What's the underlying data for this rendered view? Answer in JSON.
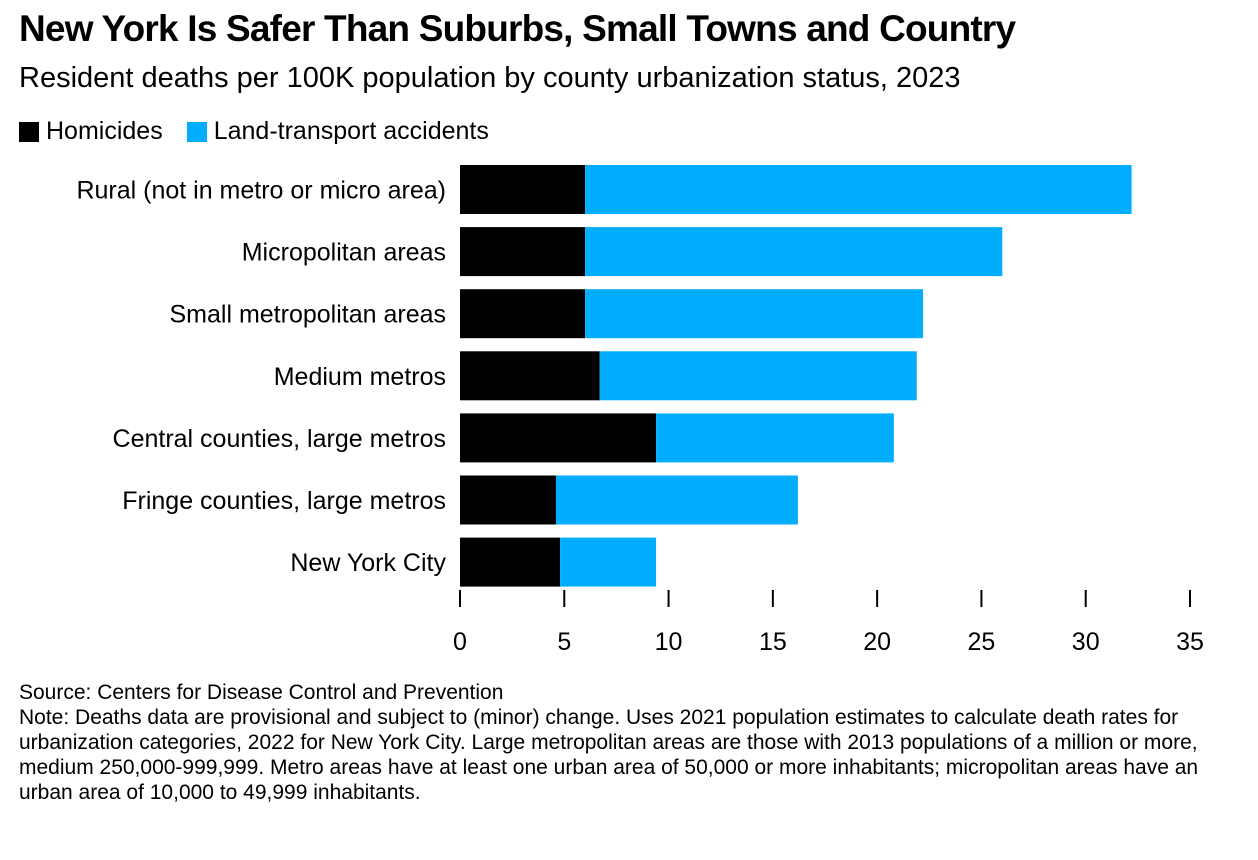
{
  "title": "New York Is Safer Than Suburbs, Small Towns and Country",
  "subtitle": "Resident deaths per 100K population by county urbanization status, 2023",
  "colors": {
    "homicides": "#000000",
    "transport": "#00adff",
    "axis": "#000000"
  },
  "chart_data": {
    "type": "bar",
    "orientation": "horizontal",
    "stacked": true,
    "categories": [
      "Rural (not in metro or micro area)",
      "Micropolitan areas",
      "Small metropolitan areas",
      "Medium metros",
      "Central counties, large metros",
      "Fringe counties, large metros",
      "New York City"
    ],
    "series": [
      {
        "name": "Homicides",
        "color": "#000000",
        "values": [
          6.0,
          6.0,
          6.0,
          6.7,
          9.4,
          4.6,
          4.8
        ]
      },
      {
        "name": "Land-transport accidents",
        "color": "#00adff",
        "values": [
          26.2,
          20.0,
          16.2,
          15.2,
          11.4,
          11.6,
          4.6
        ]
      }
    ],
    "xlim": [
      0,
      35
    ],
    "xticks": [
      "0",
      "5",
      "10",
      "15",
      "20",
      "25",
      "30",
      "35"
    ],
    "tick_values": [
      0,
      5,
      10,
      15,
      20,
      25,
      30,
      35
    ],
    "xlabel": "",
    "ylabel": "",
    "grid": false,
    "legend_position": "top-left"
  },
  "footer": {
    "source": "Source: Centers for Disease Control and Prevention",
    "note": "Note: Deaths data are provisional and subject to (minor) change. Uses 2021 population estimates to calculate death rates for urbanization categories, 2022 for New York City. Large metropolitan areas are those with 2013 populations of a million or more, medium 250,000-999,999. Metro areas have at least one urban area of 50,000 or more inhabitants; micropolitan areas have an urban area of 10,000 to 49,999 inhabitants."
  }
}
